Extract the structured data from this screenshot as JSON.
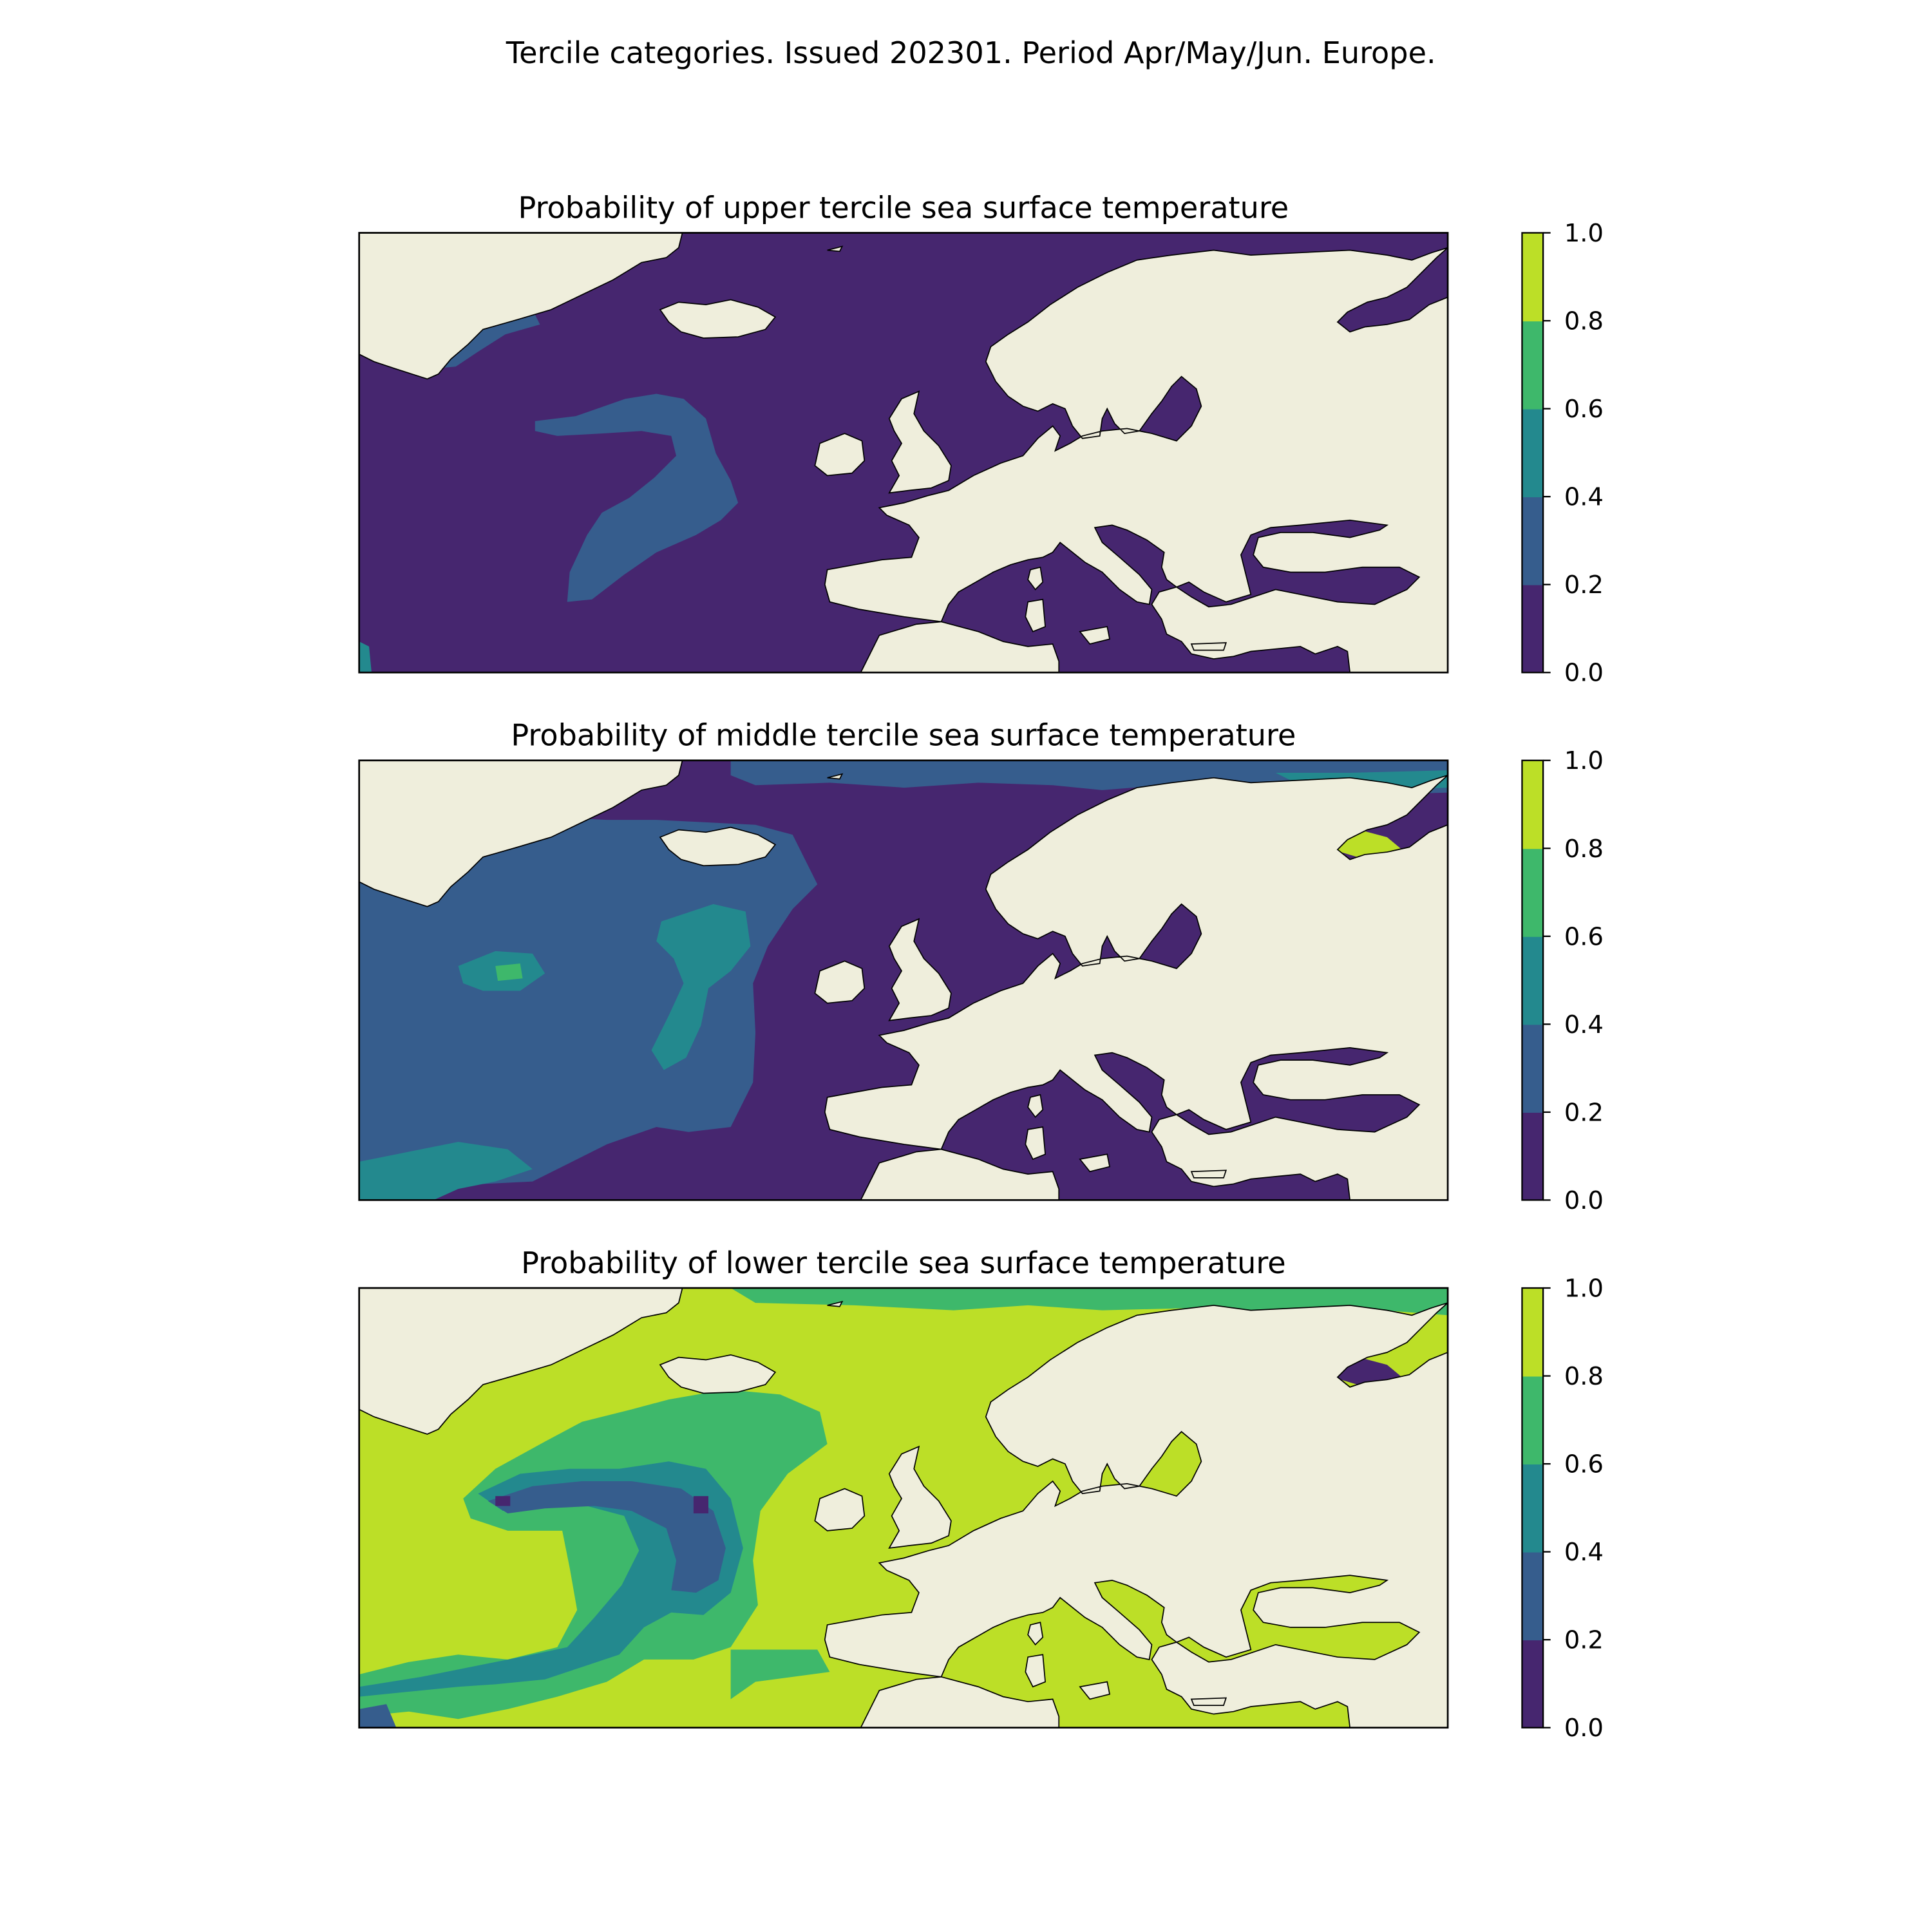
{
  "figure": {
    "suptitle": "Tercile categories. Issued 202301. Period Apr/May/Jun. Europe."
  },
  "colorbar": {
    "levels": [
      0.0,
      0.2,
      0.4,
      0.6,
      0.8,
      1.0
    ],
    "tick_labels": [
      "0.0",
      "0.2",
      "0.4",
      "0.6",
      "0.8",
      "1.0"
    ],
    "colors": [
      "#46266f",
      "#365d8d",
      "#23898e",
      "#3eb86b",
      "#4cc26c",
      "#bcdf27"
    ]
  },
  "colors": {
    "land": "#efeedc",
    "coast": "#000000",
    "frame": "#000000"
  },
  "panels": [
    {
      "id": "upper",
      "title": "Probability of upper tercile sea surface temperature",
      "dominant_range": "0.0-0.2",
      "features": [
        {
          "label": "0.2-0.4",
          "region": "central North Atlantic plume"
        },
        {
          "label": "0.2-0.4",
          "region": "East Greenland coast"
        }
      ]
    },
    {
      "id": "middle",
      "title": "Probability of middle tercile sea surface temperature",
      "dominant_range": "0.0-0.2",
      "features": [
        {
          "label": "0.2-0.4",
          "region": "central North Atlantic band"
        },
        {
          "label": "0.4-0.6",
          "region": "mid-Atlantic patches"
        },
        {
          "label": "0.4-0.6",
          "region": "southwest Atlantic corner"
        },
        {
          "label": "0.8-1.0",
          "region": "White Sea"
        }
      ]
    },
    {
      "id": "lower",
      "title": "Probability of lower tercile sea surface temperature",
      "dominant_range": "0.8-1.0",
      "features": [
        {
          "label": "0.6-0.8",
          "region": "mid-Atlantic ring"
        },
        {
          "label": "0.4-0.6",
          "region": "central Atlantic band"
        },
        {
          "label": "0.2-0.4",
          "region": "central Atlantic core"
        },
        {
          "label": "0.0-0.2",
          "region": "White Sea"
        }
      ]
    }
  ]
}
